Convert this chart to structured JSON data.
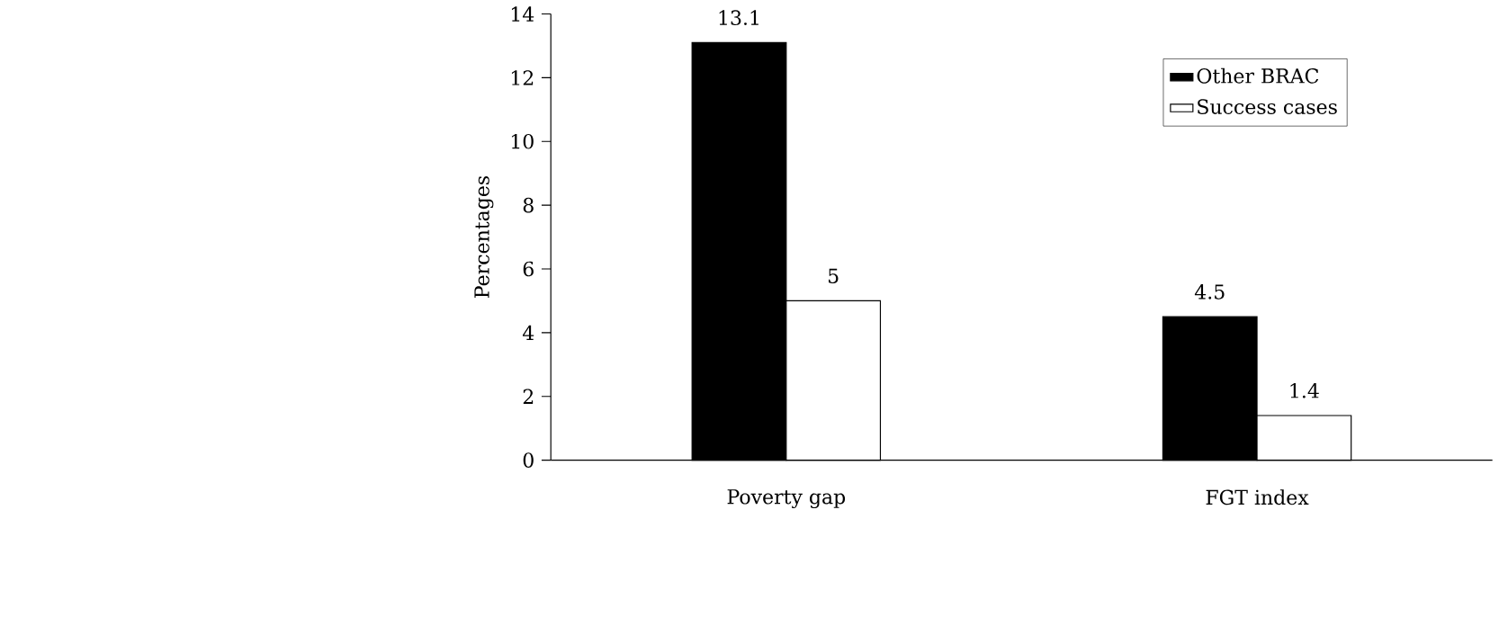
{
  "chart_data": {
    "type": "bar",
    "ylabel": "Percentages",
    "categories": [
      "Poverty gap",
      "FGT index"
    ],
    "series": [
      {
        "name": "Other BRAC",
        "color": "#000000",
        "values": [
          13.1,
          4.5
        ]
      },
      {
        "name": "Success cases",
        "color": "#ffffff",
        "values": [
          5,
          1.4
        ]
      }
    ],
    "ylim": [
      0,
      14
    ],
    "yticks": [
      0,
      2,
      4,
      6,
      8,
      10,
      12,
      14
    ],
    "data_labels": true,
    "legend": "top right",
    "grid": false
  }
}
